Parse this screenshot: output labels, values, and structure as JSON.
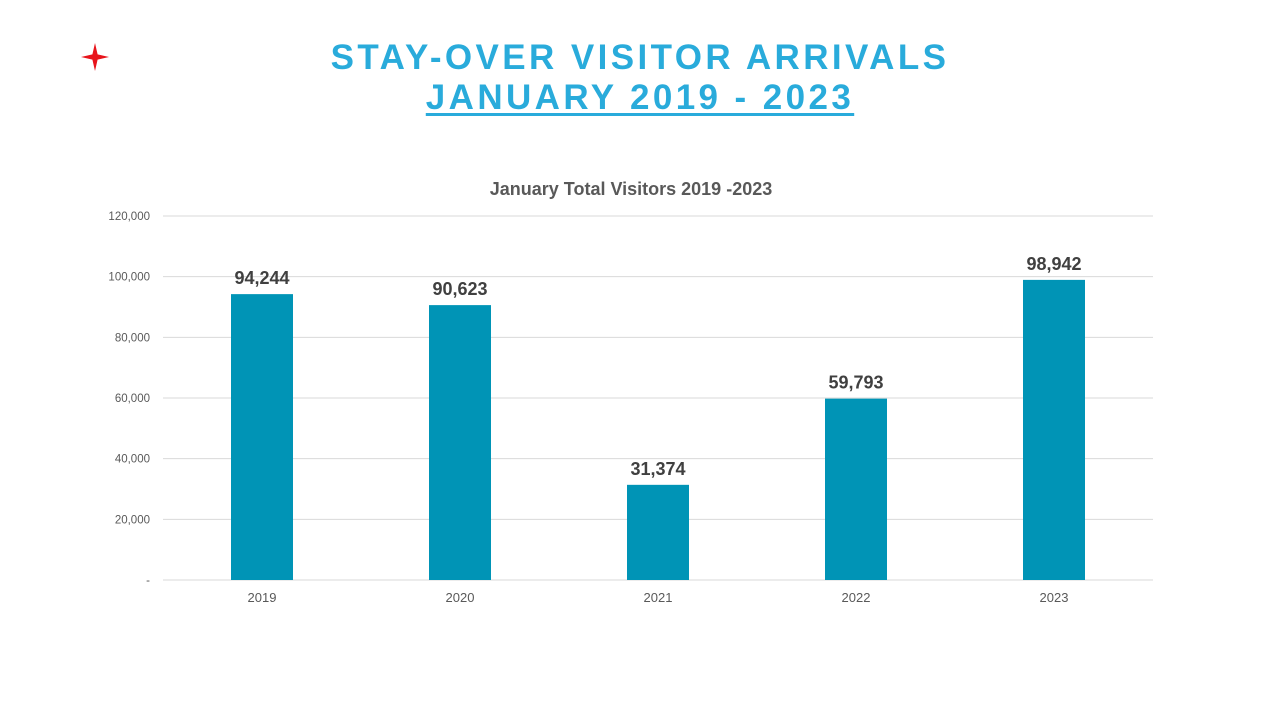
{
  "header": {
    "title_line1": "STAY-OVER VISITOR ARRIVALS",
    "title_line2": "JANUARY 2019 - 2023"
  },
  "icons": {
    "logo": "red-four-point-star-icon"
  },
  "colors": {
    "title": "#29ABDB",
    "bar": "#0094B6",
    "star": "#E8141B",
    "grid": "#D9D9D9"
  },
  "chart_data": {
    "type": "bar",
    "title": "January Total Visitors 2019 -2023",
    "categories": [
      "2019",
      "2020",
      "2021",
      "2022",
      "2023"
    ],
    "values": [
      94244,
      90623,
      31374,
      59793,
      98942
    ],
    "value_labels": [
      "94,244",
      "90,623",
      "31,374",
      "59,793",
      "98,942"
    ],
    "ylim": [
      0,
      120000
    ],
    "y_ticks": [
      0,
      20000,
      40000,
      60000,
      80000,
      100000,
      120000
    ],
    "y_tick_labels": [
      "-",
      "20,000",
      "40,000",
      "60,000",
      "80,000",
      "100,000",
      "120,000"
    ],
    "grid": true,
    "legend": "none"
  }
}
